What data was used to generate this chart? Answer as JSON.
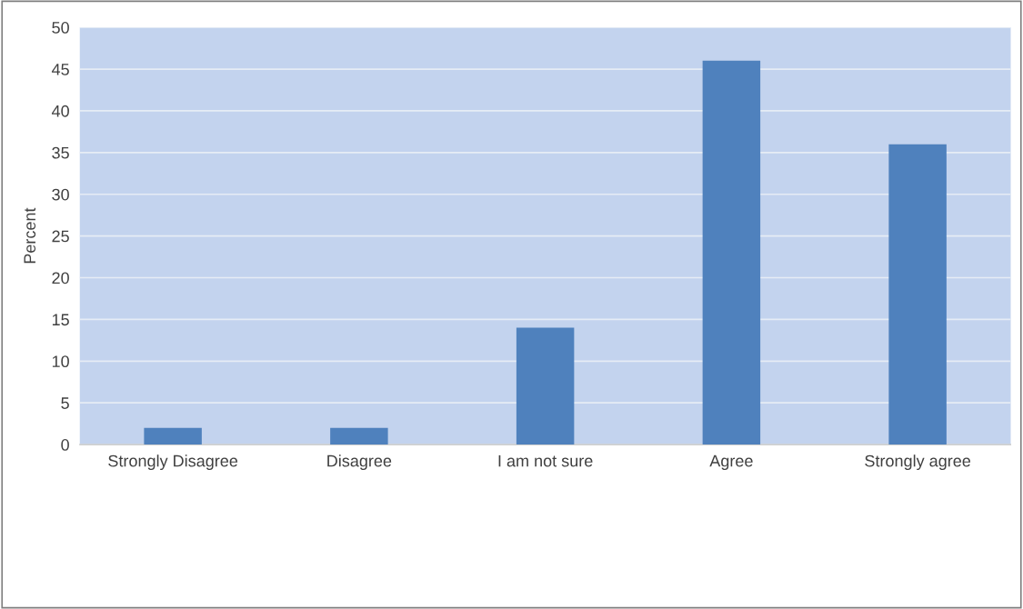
{
  "chart_data": {
    "type": "bar",
    "ylabel": "Percent",
    "categories": [
      "Strongly Disagree",
      "Disagree",
      "I am not sure",
      "Agree",
      "Strongly agree"
    ],
    "values": [
      2,
      2,
      14,
      46,
      36
    ],
    "color": "#4f81bd",
    "ylim": [
      0,
      50
    ],
    "yticks": [
      0,
      5,
      10,
      15,
      20,
      25,
      30,
      35,
      40,
      45,
      50
    ],
    "grid": "y"
  }
}
